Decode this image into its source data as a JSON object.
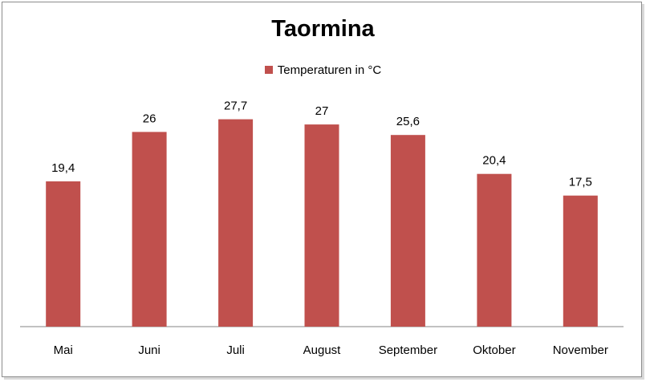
{
  "chart_data": {
    "type": "bar",
    "title": "Taormina",
    "categories": [
      "Mai",
      "Juni",
      "Juli",
      "August",
      "September",
      "Oktober",
      "November"
    ],
    "series": [
      {
        "name": "Temperaturen  in °C",
        "values": [
          19.4,
          26,
          27.7,
          27,
          25.6,
          20.4,
          17.5
        ],
        "labels": [
          "19,4",
          "26",
          "27,7",
          "27",
          "25,6",
          "20,4",
          "17,5"
        ]
      }
    ],
    "ylim": [
      0,
      30
    ],
    "grid": false,
    "legend_position": "top",
    "colors": {
      "bar": "#c0504d",
      "axis": "#868686"
    }
  }
}
